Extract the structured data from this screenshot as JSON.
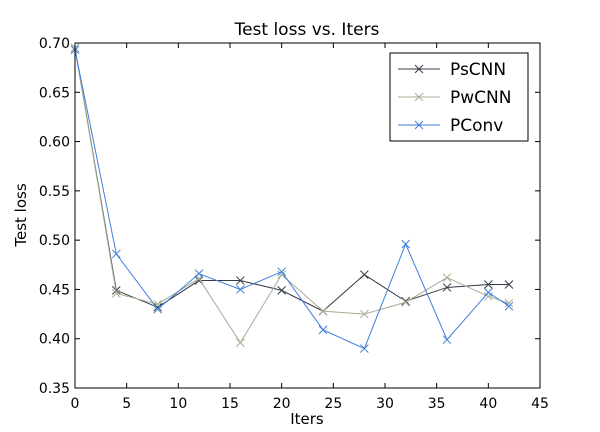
{
  "chart_data": {
    "type": "line",
    "title": "Test loss  vs. Iters",
    "xlabel": "Iters",
    "ylabel": "Test loss",
    "xlim": [
      0,
      45
    ],
    "ylim": [
      0.35,
      0.7
    ],
    "xticks": [
      0,
      5,
      10,
      15,
      20,
      25,
      30,
      35,
      40,
      45
    ],
    "yticks": [
      0.35,
      0.4,
      0.45,
      0.5,
      0.55,
      0.6,
      0.65,
      0.7
    ],
    "x": [
      0,
      4,
      8,
      12,
      16,
      20,
      24,
      28,
      32,
      36,
      40,
      42
    ],
    "grid": false,
    "legend_position": "top-right",
    "marker": "x",
    "series": [
      {
        "name": "PsCNN",
        "color": "#333b45",
        "values": [
          0.695,
          0.449,
          0.432,
          0.459,
          0.459,
          0.449,
          0.428,
          0.465,
          0.438,
          0.452,
          0.455,
          0.455
        ]
      },
      {
        "name": "PwCNN",
        "color": "#a9ad93",
        "values": [
          0.695,
          0.446,
          0.435,
          0.461,
          0.396,
          0.465,
          0.428,
          0.425,
          0.437,
          0.462,
          0.443,
          0.436
        ]
      },
      {
        "name": "PConv",
        "color": "#3d7fdb",
        "values": [
          0.693,
          0.486,
          0.43,
          0.466,
          0.45,
          0.468,
          0.409,
          0.39,
          0.496,
          0.399,
          0.447,
          0.433
        ]
      }
    ]
  }
}
